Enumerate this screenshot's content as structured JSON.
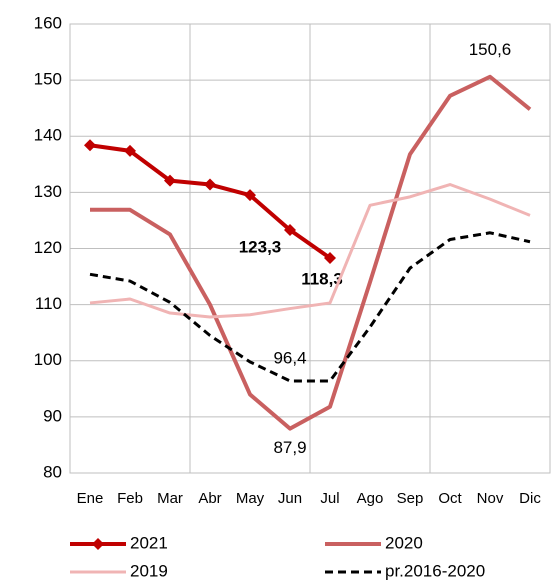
{
  "chart_data": {
    "type": "line",
    "categories": [
      "Ene",
      "Feb",
      "Mar",
      "Abr",
      "May",
      "Jun",
      "Jul",
      "Ago",
      "Sep",
      "Oct",
      "Nov",
      "Dic"
    ],
    "series": [
      {
        "name": "2021",
        "color": "#c00000",
        "width": 4,
        "dash": false,
        "marker": "diamond",
        "values": [
          138.4,
          137.4,
          132.1,
          131.4,
          129.5,
          123.3,
          118.3,
          null,
          null,
          null,
          null,
          null
        ],
        "value_labels": [
          null,
          null,
          null,
          null,
          null,
          "123,3",
          "118,3",
          null,
          null,
          null,
          null,
          null
        ]
      },
      {
        "name": "2020",
        "color": "#c96060",
        "width": 4,
        "dash": false,
        "values": [
          126.9,
          126.9,
          122.5,
          110.0,
          94.0,
          87.9,
          91.8,
          114.0,
          136.8,
          147.2,
          150.6,
          144.8
        ],
        "value_labels": [
          null,
          null,
          null,
          null,
          null,
          "87,9",
          null,
          null,
          null,
          null,
          "150,6",
          null
        ]
      },
      {
        "name": "2019",
        "color": "#f0b4b4",
        "width": 3,
        "dash": false,
        "values": [
          110.3,
          111.0,
          108.5,
          107.8,
          108.2,
          109.3,
          110.3,
          127.7,
          129.2,
          131.4,
          128.8,
          125.9
        ],
        "value_labels": [
          null,
          null,
          null,
          null,
          null,
          null,
          null,
          null,
          null,
          null,
          null,
          null
        ]
      },
      {
        "name": "pr.2016-2020",
        "color": "#000000",
        "width": 3,
        "dash": true,
        "values": [
          115.4,
          114.2,
          110.4,
          104.5,
          99.8,
          96.4,
          96.4,
          106.0,
          116.5,
          121.6,
          122.8,
          121.2
        ],
        "value_labels": [
          null,
          null,
          null,
          null,
          null,
          "96,4",
          null,
          null,
          null,
          null,
          null,
          null
        ]
      }
    ],
    "ylim": [
      80,
      160
    ],
    "yticks": [
      80,
      90,
      100,
      110,
      120,
      130,
      140,
      150,
      160
    ],
    "grid": true
  }
}
